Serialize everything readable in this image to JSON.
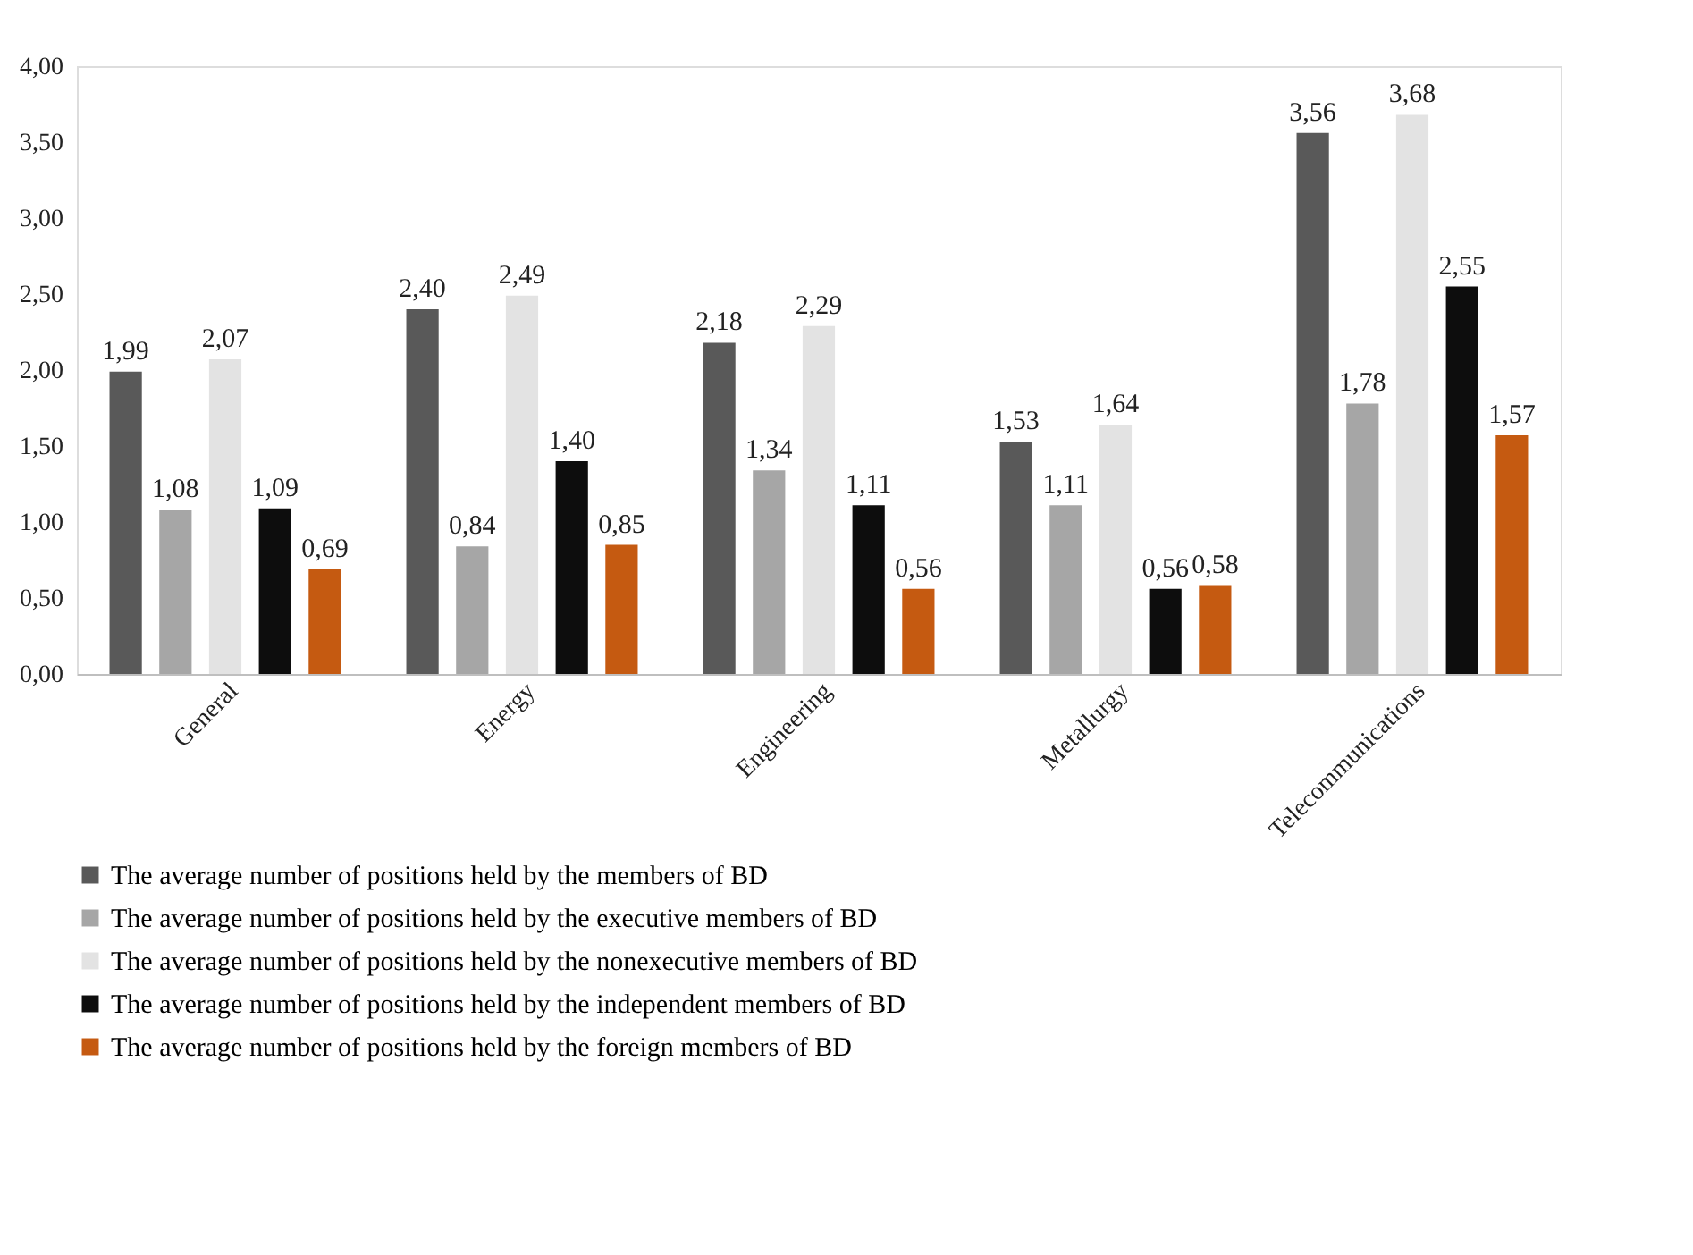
{
  "chart_data": {
    "type": "bar",
    "categories": [
      "General",
      "Energy",
      "Engineering",
      "Metallurgy",
      "Telecommunications"
    ],
    "series": [
      {
        "name": "The average number of positions held by the  members of BD",
        "color": "#595959",
        "values": [
          1.99,
          2.4,
          2.18,
          1.53,
          3.56
        ],
        "value_labels": [
          "1,99",
          "2,40",
          "2,18",
          "1,53",
          "3,56"
        ]
      },
      {
        "name": "The average number of positions held by the executive members of BD",
        "color": "#a6a6a6",
        "values": [
          1.08,
          0.84,
          1.34,
          1.11,
          1.78
        ],
        "value_labels": [
          "1,08",
          "0,84",
          "1,34",
          "1,11",
          "1,78"
        ]
      },
      {
        "name": "The average number of positions held by the nonexecutive members of BD",
        "color": "#e3e3e3",
        "values": [
          2.07,
          2.49,
          2.29,
          1.64,
          3.68
        ],
        "value_labels": [
          "2,07",
          "2,49",
          "2,29",
          "1,64",
          "3,68"
        ]
      },
      {
        "name": "The average number of positions held by the independent members of BD",
        "color": "#0d0d0d",
        "values": [
          1.09,
          1.4,
          1.11,
          0.56,
          2.55
        ],
        "value_labels": [
          "1,09",
          "1,40",
          "1,11",
          "0,56",
          "2,55"
        ]
      },
      {
        "name": "The average number of positions held by the foreign members of BD",
        "color": "#c55a11",
        "values": [
          0.69,
          0.85,
          0.56,
          0.58,
          1.57
        ],
        "value_labels": [
          "0,69",
          "0,85",
          "0,56",
          "0,58",
          "1,57"
        ]
      }
    ],
    "ylim": [
      0,
      4
    ],
    "yticks": [
      {
        "value": 0,
        "label": "0,00"
      },
      {
        "value": 0.5,
        "label": "0,50"
      },
      {
        "value": 1,
        "label": "1,00"
      },
      {
        "value": 1.5,
        "label": "1,50"
      },
      {
        "value": 2,
        "label": "2,00"
      },
      {
        "value": 2.5,
        "label": "2,50"
      },
      {
        "value": 3,
        "label": "3,00"
      },
      {
        "value": 3.5,
        "label": "3,50"
      },
      {
        "value": 4,
        "label": "4,00"
      }
    ],
    "grid": false,
    "legend": "bottom"
  }
}
